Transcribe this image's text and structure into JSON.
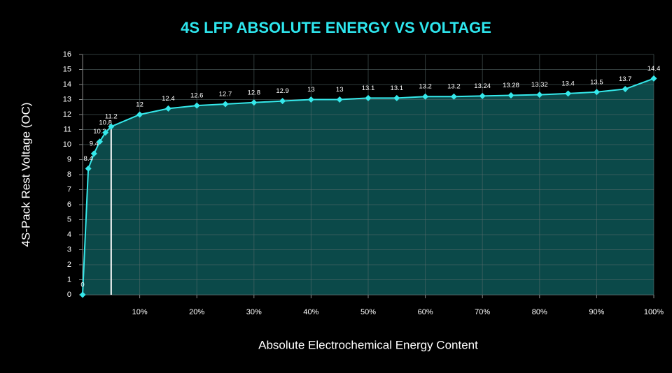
{
  "chart_data": {
    "type": "line",
    "title": "4S LFP ABSOLUTE ENERGY VS VOLTAGE",
    "x_label": "Absolute Electrochemical Energy Content",
    "y_label": "4S-Pack Rest Voltage (OC)",
    "xlim": [
      0,
      100
    ],
    "ylim": [
      0,
      16
    ],
    "xticks": [
      {
        "value": 10,
        "label": "10%"
      },
      {
        "value": 20,
        "label": "20%"
      },
      {
        "value": 30,
        "label": "30%"
      },
      {
        "value": 40,
        "label": "40%"
      },
      {
        "value": 50,
        "label": "50%"
      },
      {
        "value": 60,
        "label": "60%"
      },
      {
        "value": 70,
        "label": "70%"
      },
      {
        "value": 80,
        "label": "80%"
      },
      {
        "value": 90,
        "label": "90%"
      },
      {
        "value": 100,
        "label": "100%"
      }
    ],
    "yticks": [
      0,
      1,
      2,
      3,
      4,
      5,
      6,
      7,
      8,
      9,
      10,
      11,
      12,
      13,
      14,
      15,
      16
    ],
    "grid": true,
    "series": [
      {
        "color": "#35e8ea",
        "fill": "#0d5656",
        "x": [
          0,
          1,
          2,
          3,
          4,
          5,
          10,
          15,
          20,
          25,
          30,
          35,
          40,
          45,
          50,
          55,
          60,
          65,
          70,
          75,
          80,
          85,
          90,
          95,
          100
        ],
        "values": [
          0,
          8.4,
          9.4,
          10.2,
          10.8,
          11.2,
          12,
          12.4,
          12.6,
          12.7,
          12.8,
          12.9,
          13,
          13,
          13.1,
          13.1,
          13.2,
          13.2,
          13.24,
          13.28,
          13.32,
          13.4,
          13.5,
          13.7,
          14.4
        ]
      }
    ]
  }
}
